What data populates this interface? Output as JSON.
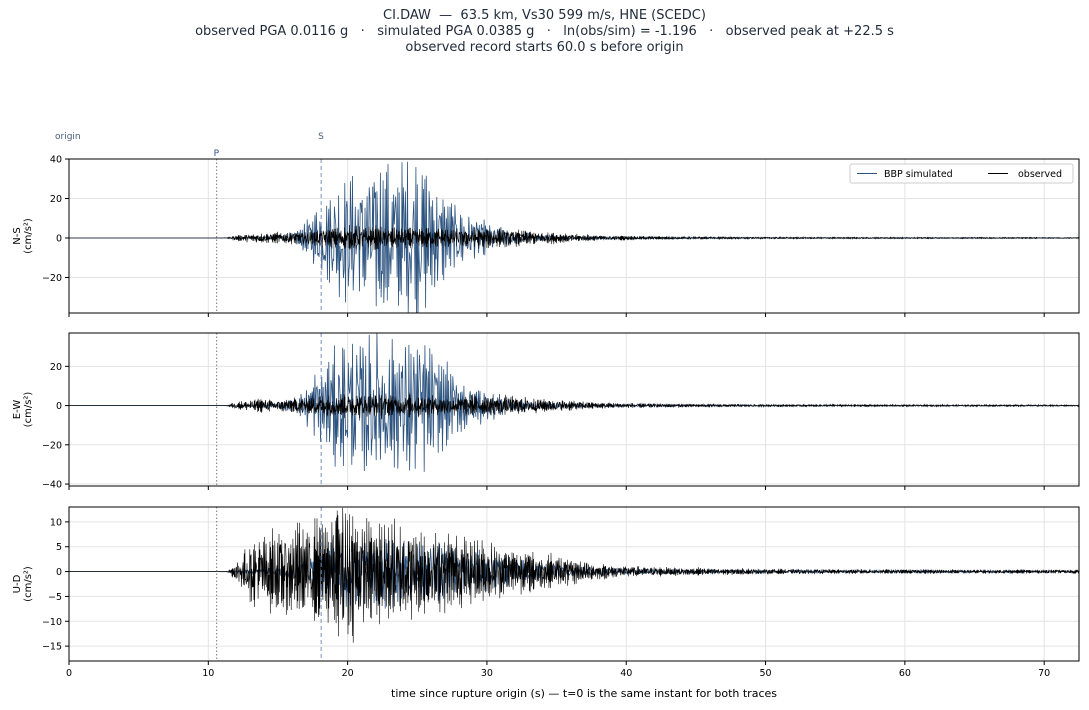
{
  "chart_data": {
    "type": "line",
    "title_lines": [
      "CI.DAW  —  63.5 km, Vs30 599 m/s, HNE (SCEDC)",
      "observed PGA 0.0116 g   ·   simulated PGA 0.0385 g   ·   ln(obs/sim) = -1.196   ·   observed peak at +22.5 s",
      "observed record starts 60.0 s before origin"
    ],
    "xlabel": "time since rupture origin (s)   —   t=0 is the same instant for both traces",
    "xlim": [
      0,
      72.5
    ],
    "xticks": [
      0,
      10,
      20,
      30,
      40,
      50,
      60,
      70
    ],
    "grid": true,
    "legend": {
      "placement": "top-right",
      "entries": [
        "BBP simulated",
        "observed"
      ]
    },
    "series_styles": {
      "simulated": {
        "name": "BBP simulated",
        "color": "#2e5480"
      },
      "observed": {
        "name": "observed",
        "color": "#000000"
      }
    },
    "markers": [
      {
        "label": "origin",
        "t": 0,
        "style": "none",
        "color": "#4a5a7a"
      },
      {
        "label": "P",
        "t": 10.6,
        "style": "dotted",
        "color": "#7a7a7a"
      },
      {
        "label": "S",
        "t": 18.1,
        "style": "dashed",
        "color": "#7a90c0"
      }
    ],
    "panels": [
      {
        "component": "N-S",
        "ylabel_lines": [
          "N-S",
          "(cm/s²)"
        ],
        "ylim": [
          -38,
          40
        ],
        "yticks": [
          -20,
          0,
          20,
          40
        ],
        "simulated_envelope": [
          [
            0,
            0
          ],
          [
            10.6,
            0
          ],
          [
            12,
            0.3
          ],
          [
            15,
            1
          ],
          [
            16.5,
            4
          ],
          [
            17.5,
            12
          ],
          [
            18.5,
            20
          ],
          [
            20,
            30
          ],
          [
            21,
            32
          ],
          [
            22,
            36
          ],
          [
            23,
            31
          ],
          [
            24,
            34
          ],
          [
            25,
            36
          ],
          [
            26,
            28
          ],
          [
            27,
            18
          ],
          [
            28,
            14
          ],
          [
            29,
            10
          ],
          [
            30,
            7
          ],
          [
            31,
            5
          ],
          [
            32,
            3
          ],
          [
            34,
            1.5
          ],
          [
            36,
            1
          ],
          [
            40,
            0.6
          ],
          [
            50,
            0.3
          ],
          [
            72.5,
            0.2
          ]
        ],
        "observed_envelope": [
          [
            0,
            0
          ],
          [
            11.3,
            0
          ],
          [
            11.8,
            1.2
          ],
          [
            13,
            2.2
          ],
          [
            15,
            2.6
          ],
          [
            17,
            3.5
          ],
          [
            18,
            4.5
          ],
          [
            20,
            5.5
          ],
          [
            22,
            5.5
          ],
          [
            24,
            5
          ],
          [
            26,
            5
          ],
          [
            28,
            4.8
          ],
          [
            30,
            4.8
          ],
          [
            32,
            4
          ],
          [
            34,
            3
          ],
          [
            36,
            2
          ],
          [
            38,
            1.3
          ],
          [
            40,
            1
          ],
          [
            45,
            0.6
          ],
          [
            50,
            0.4
          ],
          [
            60,
            0.3
          ],
          [
            72.5,
            0.25
          ]
        ]
      },
      {
        "component": "E-W",
        "ylabel_lines": [
          "E-W",
          "(cm/s²)"
        ],
        "ylim": [
          -41,
          37
        ],
        "yticks": [
          -40,
          -20,
          0,
          20
        ],
        "simulated_envelope": [
          [
            0,
            0
          ],
          [
            10.6,
            0
          ],
          [
            12,
            0.3
          ],
          [
            15,
            1
          ],
          [
            16.5,
            4
          ],
          [
            17.5,
            14
          ],
          [
            18.5,
            22
          ],
          [
            20,
            30
          ],
          [
            21,
            32
          ],
          [
            22,
            34
          ],
          [
            23,
            30
          ],
          [
            24,
            31
          ],
          [
            25,
            36
          ],
          [
            26,
            28
          ],
          [
            27,
            18
          ],
          [
            28,
            14
          ],
          [
            29,
            10
          ],
          [
            30,
            7
          ],
          [
            31,
            5
          ],
          [
            32,
            3
          ],
          [
            34,
            1.5
          ],
          [
            36,
            1
          ],
          [
            40,
            0.6
          ],
          [
            50,
            0.3
          ],
          [
            72.5,
            0.2
          ]
        ],
        "observed_envelope": [
          [
            0,
            0
          ],
          [
            11.3,
            0
          ],
          [
            11.8,
            1.5
          ],
          [
            13,
            3
          ],
          [
            15,
            3.2
          ],
          [
            17,
            4
          ],
          [
            18,
            5.5
          ],
          [
            20,
            6
          ],
          [
            22,
            6
          ],
          [
            24,
            5.5
          ],
          [
            26,
            5.5
          ],
          [
            28,
            5
          ],
          [
            30,
            5
          ],
          [
            32,
            4.5
          ],
          [
            34,
            3.5
          ],
          [
            36,
            2.5
          ],
          [
            38,
            1.6
          ],
          [
            40,
            1.3
          ],
          [
            45,
            0.8
          ],
          [
            50,
            0.6
          ],
          [
            60,
            0.5
          ],
          [
            72.5,
            0.4
          ]
        ]
      },
      {
        "component": "U-D",
        "ylabel_lines": [
          "U-D",
          "(cm/s²)"
        ],
        "ylim": [
          -18,
          13
        ],
        "yticks": [
          -15,
          -10,
          -5,
          0,
          5,
          10
        ],
        "simulated_envelope": [
          [
            0,
            0
          ],
          [
            10.6,
            0
          ],
          [
            12,
            0.2
          ],
          [
            15,
            0.8
          ],
          [
            17,
            2.5
          ],
          [
            18,
            4.5
          ],
          [
            20,
            6
          ],
          [
            22,
            6.5
          ],
          [
            24,
            6
          ],
          [
            26,
            5.5
          ],
          [
            28,
            4.5
          ],
          [
            30,
            3.5
          ],
          [
            32,
            2.5
          ],
          [
            34,
            1.5
          ],
          [
            36,
            1
          ],
          [
            40,
            0.6
          ],
          [
            50,
            0.3
          ],
          [
            72.5,
            0.2
          ]
        ],
        "observed_envelope": [
          [
            0,
            0
          ],
          [
            11.3,
            0
          ],
          [
            11.7,
            1
          ],
          [
            12.5,
            4
          ],
          [
            13.5,
            6.5
          ],
          [
            15,
            8.5
          ],
          [
            17,
            9
          ],
          [
            18,
            9.5
          ],
          [
            19.9,
            14
          ],
          [
            21,
            10
          ],
          [
            22,
            10
          ],
          [
            23,
            10
          ],
          [
            24,
            9.5
          ],
          [
            26,
            8
          ],
          [
            28,
            7
          ],
          [
            30,
            6
          ],
          [
            32,
            4.5
          ],
          [
            34,
            3.5
          ],
          [
            36,
            2.5
          ],
          [
            38,
            1.6
          ],
          [
            40,
            1.1
          ],
          [
            45,
            0.7
          ],
          [
            50,
            0.5
          ],
          [
            60,
            0.4
          ],
          [
            72.5,
            0.35
          ]
        ]
      }
    ]
  }
}
